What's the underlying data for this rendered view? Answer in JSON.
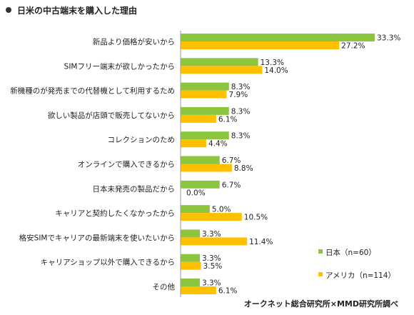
{
  "chart_data": {
    "type": "bar",
    "orientation": "horizontal",
    "title": "日米の中古端末を購入した理由",
    "categories": [
      "新品より価格が安いから",
      "SIMフリー端末が欲しかったから",
      "新機種のが発売までの代替機として利用するため",
      "欲しい製品が店頭で販売してないから",
      "コレクションのため",
      "オンラインで購入できるから",
      "日本未発売の製品だから",
      "キャリアと契約したくなかったから",
      "格安SIMでキャリアの最新端末を使いたいから",
      "キャリアショップ以外で購入できるから",
      "その他"
    ],
    "series": [
      {
        "name": "日本（n=60）",
        "color": "#8cc63f",
        "values": [
          33.3,
          13.3,
          8.3,
          8.3,
          8.3,
          6.7,
          6.7,
          5.0,
          3.3,
          3.3,
          3.3
        ],
        "labels": [
          "33.3%",
          "13.3%",
          "8.3%",
          "8.3%",
          "8.3%",
          "6.7%",
          "6.7%",
          "5.0%",
          "3.3%",
          "3.3%",
          "3.3%"
        ]
      },
      {
        "name": "アメリカ（n=114）",
        "color": "#ffc000",
        "values": [
          27.2,
          14.0,
          7.9,
          6.1,
          4.4,
          8.8,
          0.0,
          10.5,
          11.4,
          3.5,
          6.1
        ],
        "labels": [
          "27.2%",
          "14.0%",
          "7.9%",
          "6.1%",
          "4.4%",
          "8.8%",
          "0.0%",
          "10.5%",
          "11.4%",
          "3.5%",
          "6.1%"
        ]
      }
    ],
    "xlim": [
      0,
      33.3
    ],
    "grid": false,
    "legend_position": "bottom-right",
    "source": "オークネット総合研究所×MMD研究所調べ"
  }
}
